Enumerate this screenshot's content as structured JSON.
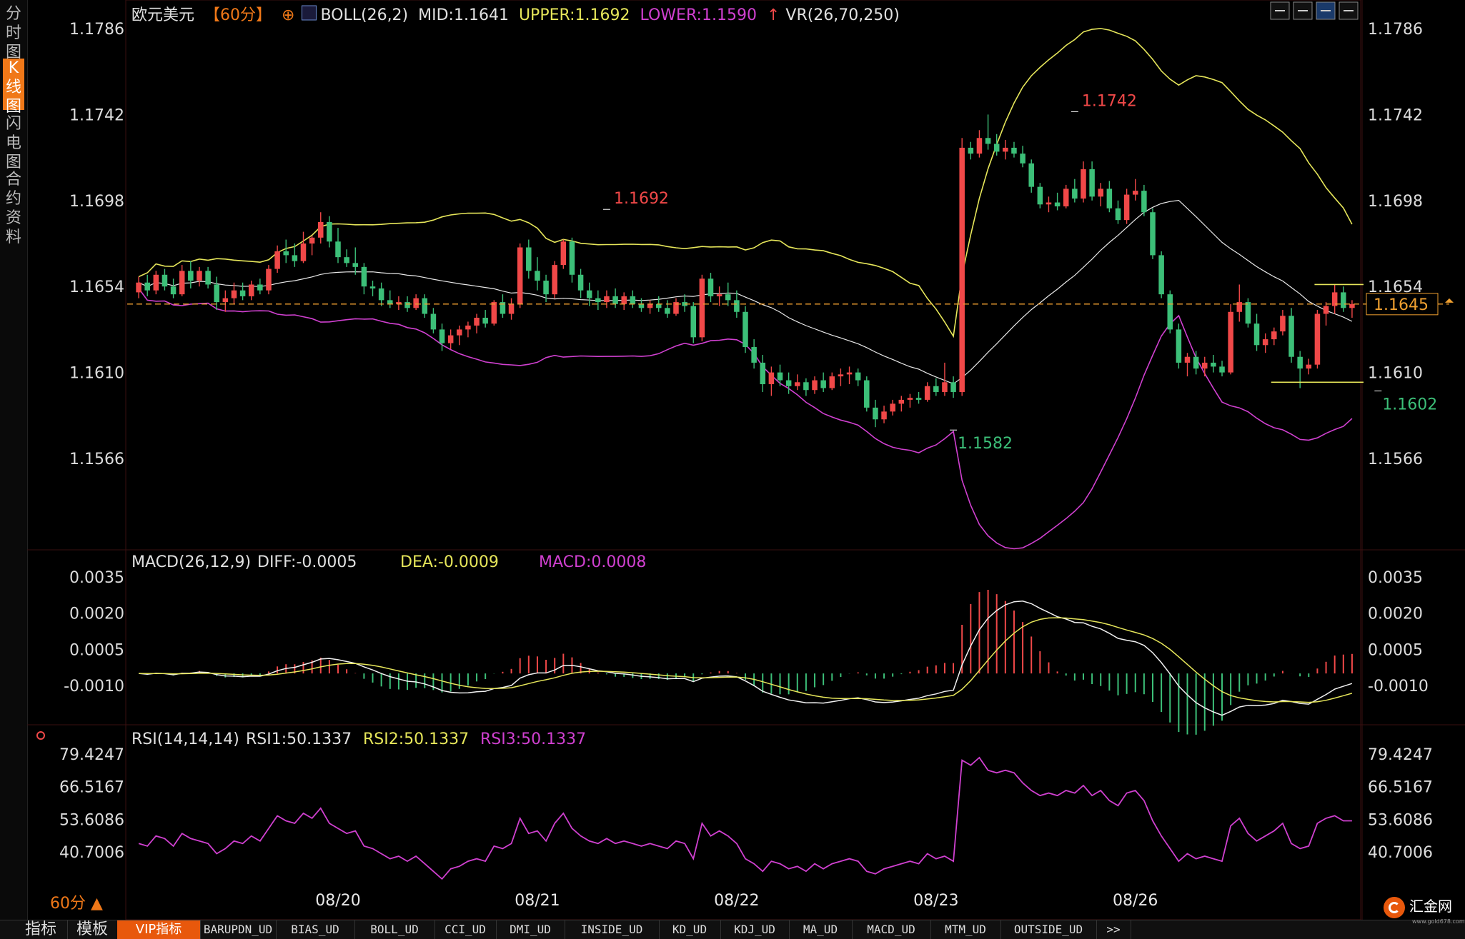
{
  "sidebar": {
    "tabs": [
      {
        "label": "分时图",
        "active": false
      },
      {
        "label": "K线图",
        "active": true
      },
      {
        "label": "闪电图",
        "active": false
      },
      {
        "label": "合约资料",
        "active": false
      }
    ]
  },
  "header": {
    "symbol": "欧元美元",
    "period": "【60分】",
    "boll": "BOLL(26,2)",
    "mid": "MID:1.1641",
    "upper": "UPPER:1.1692",
    "lower": "LOWER:1.1590",
    "vr": "VR(26,70,250)"
  },
  "toolbar_icons": [
    "crosshair-icon",
    "grid-icon",
    "line-chart-icon",
    "fullscreen-icon"
  ],
  "price_panel": {
    "y_ticks": [
      "1.1786",
      "1.1742",
      "1.1698",
      "1.1654",
      "1.1610",
      "1.1566"
    ],
    "y_tick_values": [
      1.1786,
      1.1742,
      1.1698,
      1.1654,
      1.161,
      1.1566
    ],
    "current_price": "1.1645",
    "current_value": 1.1645,
    "annotations": [
      {
        "text": "1.1692",
        "type": "high",
        "bar": 54,
        "price": 1.1692
      },
      {
        "text": "1.1742",
        "type": "high",
        "bar": 108,
        "price": 1.1742
      },
      {
        "text": "1.1582",
        "type": "low",
        "bar": 94,
        "price": 1.1582
      },
      {
        "text": "1.1602",
        "type": "low",
        "bar": 143,
        "price": 1.1602
      }
    ],
    "range_lines": [
      {
        "price": 1.1655,
        "from_bar": 136,
        "to_bar": 155
      },
      {
        "price": 1.1605,
        "from_bar": 131,
        "to_bar": 155
      }
    ]
  },
  "macd_panel": {
    "label": "MACD(26,12,9)",
    "diff": "DIFF:-0.0005",
    "dea": "DEA:-0.0009",
    "macd": "MACD:0.0008",
    "y_ticks": [
      "0.0035",
      "0.0020",
      "0.0005",
      "-0.0010"
    ],
    "y_tick_values": [
      0.0035,
      0.002,
      0.0005,
      -0.001
    ]
  },
  "rsi_panel": {
    "label": "RSI(14,14,14)",
    "rsi1": "RSI1:50.1337",
    "rsi2": "RSI2:50.1337",
    "rsi3": "RSI3:50.1337",
    "y_ticks": [
      "79.4247",
      "66.5167",
      "53.6086",
      "40.7006"
    ],
    "y_tick_values": [
      79.4247,
      66.5167,
      53.6086,
      40.7006
    ]
  },
  "x_axis": {
    "dates": [
      {
        "label": "08/20",
        "bar": 23
      },
      {
        "label": "08/21",
        "bar": 46
      },
      {
        "label": "08/22",
        "bar": 69
      },
      {
        "label": "08/23",
        "bar": 92
      },
      {
        "label": "08/26",
        "bar": 115
      }
    ]
  },
  "period_label": "60分",
  "bottom_tabs": [
    "指标",
    "模板",
    "VIP指标",
    "BARUPDN_UD",
    "BIAS_UD",
    "BOLL_UD",
    "CCI_UD",
    "DMI_UD",
    "INSIDE_UD",
    "KD_UD",
    "KDJ_UD",
    "MA_UD",
    "MACD_UD",
    "MTM_UD",
    "OUTSIDE_UD",
    ">>"
  ],
  "logo": {
    "text": "汇金网",
    "sub": "www.gold678.com"
  },
  "colors": {
    "up": "#f04848",
    "down": "#3cbf78",
    "mid": "#e8e8e8",
    "upper": "#e6e65a",
    "lower": "#d040d0",
    "accent": "#f07818",
    "axis": "#3a1010"
  },
  "chart_data": [
    {
      "type": "candlestick",
      "title": "欧元美元 60分",
      "ohlc": [
        [
          1.1651,
          1.1659,
          1.1648,
          1.1656
        ],
        [
          1.1656,
          1.166,
          1.1649,
          1.1652
        ],
        [
          1.1652,
          1.1662,
          1.165,
          1.166
        ],
        [
          1.166,
          1.1663,
          1.1652,
          1.1654
        ],
        [
          1.1654,
          1.1658,
          1.1648,
          1.165
        ],
        [
          1.165,
          1.1665,
          1.1649,
          1.1662
        ],
        [
          1.1662,
          1.1667,
          1.1653,
          1.1657
        ],
        [
          1.1657,
          1.1664,
          1.1654,
          1.1662
        ],
        [
          1.1662,
          1.1664,
          1.1653,
          1.1655
        ],
        [
          1.1655,
          1.1659,
          1.1642,
          1.1646
        ],
        [
          1.1646,
          1.1652,
          1.1641,
          1.1648
        ],
        [
          1.1648,
          1.1656,
          1.1645,
          1.1652
        ],
        [
          1.1652,
          1.1656,
          1.1647,
          1.1649
        ],
        [
          1.1649,
          1.1657,
          1.1647,
          1.1655
        ],
        [
          1.1655,
          1.1658,
          1.165,
          1.1652
        ],
        [
          1.1652,
          1.1665,
          1.165,
          1.1663
        ],
        [
          1.1663,
          1.1675,
          1.1661,
          1.1672
        ],
        [
          1.1672,
          1.1678,
          1.1666,
          1.167
        ],
        [
          1.167,
          1.1676,
          1.1664,
          1.1667
        ],
        [
          1.1667,
          1.1682,
          1.1666,
          1.1676
        ],
        [
          1.1676,
          1.168,
          1.167,
          1.1679
        ],
        [
          1.1679,
          1.1692,
          1.1676,
          1.1687
        ],
        [
          1.1687,
          1.169,
          1.1674,
          1.1677
        ],
        [
          1.1677,
          1.1684,
          1.1666,
          1.1669
        ],
        [
          1.1669,
          1.1673,
          1.1664,
          1.1666
        ],
        [
          1.1666,
          1.1674,
          1.166,
          1.1664
        ],
        [
          1.1664,
          1.1666,
          1.165,
          1.1654
        ],
        [
          1.1654,
          1.1657,
          1.1649,
          1.1653
        ],
        [
          1.1653,
          1.1656,
          1.1644,
          1.1647
        ],
        [
          1.1647,
          1.1652,
          1.1643,
          1.1645
        ],
        [
          1.1645,
          1.1649,
          1.1642,
          1.1646
        ],
        [
          1.1646,
          1.1649,
          1.1641,
          1.1643
        ],
        [
          1.1643,
          1.165,
          1.1642,
          1.1648
        ],
        [
          1.1648,
          1.165,
          1.1638,
          1.164
        ],
        [
          1.164,
          1.1643,
          1.163,
          1.1632
        ],
        [
          1.1632,
          1.1635,
          1.1621,
          1.1625
        ],
        [
          1.1625,
          1.1632,
          1.1622,
          1.1629
        ],
        [
          1.1629,
          1.1634,
          1.1624,
          1.1632
        ],
        [
          1.1632,
          1.1636,
          1.1628,
          1.1634
        ],
        [
          1.1634,
          1.164,
          1.163,
          1.1638
        ],
        [
          1.1638,
          1.1642,
          1.1633,
          1.1635
        ],
        [
          1.1635,
          1.1647,
          1.1634,
          1.1646
        ],
        [
          1.1646,
          1.165,
          1.1638,
          1.164
        ],
        [
          1.164,
          1.1648,
          1.1637,
          1.1645
        ],
        [
          1.1645,
          1.1676,
          1.1643,
          1.1674
        ],
        [
          1.1674,
          1.1678,
          1.1658,
          1.1662
        ],
        [
          1.1662,
          1.1669,
          1.1652,
          1.1657
        ],
        [
          1.1657,
          1.166,
          1.1646,
          1.165
        ],
        [
          1.165,
          1.1667,
          1.1648,
          1.1665
        ],
        [
          1.1665,
          1.1678,
          1.1663,
          1.1677
        ],
        [
          1.1677,
          1.1679,
          1.1656,
          1.166
        ],
        [
          1.166,
          1.1663,
          1.1648,
          1.1652
        ],
        [
          1.1652,
          1.1656,
          1.1644,
          1.1648
        ],
        [
          1.1648,
          1.1652,
          1.1642,
          1.1646
        ],
        [
          1.1646,
          1.1652,
          1.1643,
          1.1649
        ],
        [
          1.1649,
          1.1653,
          1.1643,
          1.1645
        ],
        [
          1.1645,
          1.1651,
          1.1642,
          1.1649
        ],
        [
          1.1649,
          1.1652,
          1.1643,
          1.1645
        ],
        [
          1.1645,
          1.1648,
          1.1641,
          1.1643
        ],
        [
          1.1643,
          1.1647,
          1.164,
          1.1645
        ],
        [
          1.1645,
          1.1649,
          1.1641,
          1.1643
        ],
        [
          1.1643,
          1.1647,
          1.1638,
          1.164
        ],
        [
          1.164,
          1.1648,
          1.1639,
          1.1646
        ],
        [
          1.1646,
          1.165,
          1.1641,
          1.1644
        ],
        [
          1.1644,
          1.1646,
          1.1625,
          1.1628
        ],
        [
          1.1628,
          1.166,
          1.1626,
          1.1658
        ],
        [
          1.1658,
          1.1661,
          1.1646,
          1.1649
        ],
        [
          1.1649,
          1.1654,
          1.1644,
          1.165
        ],
        [
          1.165,
          1.1656,
          1.1644,
          1.1647
        ],
        [
          1.1647,
          1.1652,
          1.1638,
          1.1641
        ],
        [
          1.1641,
          1.1644,
          1.162,
          1.1623
        ],
        [
          1.1623,
          1.1627,
          1.1612,
          1.1615
        ],
        [
          1.1615,
          1.1619,
          1.16,
          1.1604
        ],
        [
          1.1604,
          1.1613,
          1.1598,
          1.161
        ],
        [
          1.161,
          1.1614,
          1.1603,
          1.1606
        ],
        [
          1.1606,
          1.161,
          1.1599,
          1.1603
        ],
        [
          1.1603,
          1.1609,
          1.1601,
          1.1605
        ],
        [
          1.1605,
          1.1607,
          1.1598,
          1.1601
        ],
        [
          1.1601,
          1.1608,
          1.1599,
          1.1606
        ],
        [
          1.1606,
          1.161,
          1.16,
          1.1602
        ],
        [
          1.1602,
          1.161,
          1.1601,
          1.1608
        ],
        [
          1.1608,
          1.1612,
          1.1603,
          1.1609
        ],
        [
          1.1609,
          1.1613,
          1.1604,
          1.161
        ],
        [
          1.161,
          1.1612,
          1.1603,
          1.1606
        ],
        [
          1.1606,
          1.1608,
          1.159,
          1.1592
        ],
        [
          1.1592,
          1.1596,
          1.1582,
          1.1586
        ],
        [
          1.1586,
          1.1593,
          1.1584,
          1.159
        ],
        [
          1.159,
          1.1596,
          1.1588,
          1.1594
        ],
        [
          1.1594,
          1.1598,
          1.159,
          1.1596
        ],
        [
          1.1596,
          1.1599,
          1.1592,
          1.1597
        ],
        [
          1.1597,
          1.16,
          1.1594,
          1.1596
        ],
        [
          1.1596,
          1.1605,
          1.1595,
          1.1603
        ],
        [
          1.1603,
          1.1607,
          1.1598,
          1.16
        ],
        [
          1.16,
          1.1615,
          1.1598,
          1.1605
        ],
        [
          1.1605,
          1.1608,
          1.1597,
          1.16
        ],
        [
          1.16,
          1.173,
          1.1598,
          1.1725
        ],
        [
          1.1725,
          1.1728,
          1.1719,
          1.1722
        ],
        [
          1.1722,
          1.1734,
          1.172,
          1.173
        ],
        [
          1.173,
          1.1742,
          1.1724,
          1.1727
        ],
        [
          1.1727,
          1.1732,
          1.1721,
          1.1723
        ],
        [
          1.1723,
          1.1729,
          1.1719,
          1.1725
        ],
        [
          1.1725,
          1.1728,
          1.172,
          1.1722
        ],
        [
          1.1722,
          1.1726,
          1.1715,
          1.1717
        ],
        [
          1.1717,
          1.1719,
          1.1702,
          1.1705
        ],
        [
          1.1705,
          1.1707,
          1.1694,
          1.1696
        ],
        [
          1.1696,
          1.17,
          1.1692,
          1.1697
        ],
        [
          1.1697,
          1.1702,
          1.1693,
          1.1695
        ],
        [
          1.1695,
          1.1706,
          1.1694,
          1.1704
        ],
        [
          1.1704,
          1.1709,
          1.1697,
          1.1699
        ],
        [
          1.1699,
          1.1718,
          1.1697,
          1.1714
        ],
        [
          1.1714,
          1.1718,
          1.1698,
          1.17
        ],
        [
          1.17,
          1.1707,
          1.1695,
          1.1704
        ],
        [
          1.1704,
          1.1708,
          1.1692,
          1.1694
        ],
        [
          1.1694,
          1.1698,
          1.1686,
          1.1688
        ],
        [
          1.1688,
          1.1704,
          1.1686,
          1.1701
        ],
        [
          1.1701,
          1.1709,
          1.1698,
          1.1703
        ],
        [
          1.1703,
          1.1706,
          1.169,
          1.1692
        ],
        [
          1.1692,
          1.1694,
          1.1668,
          1.167
        ],
        [
          1.167,
          1.1672,
          1.1648,
          1.165
        ],
        [
          1.165,
          1.1652,
          1.163,
          1.1632
        ],
        [
          1.1632,
          1.1635,
          1.1612,
          1.1615
        ],
        [
          1.1615,
          1.162,
          1.1608,
          1.1618
        ],
        [
          1.1618,
          1.1621,
          1.1609,
          1.1612
        ],
        [
          1.1612,
          1.1618,
          1.1608,
          1.1615
        ],
        [
          1.1615,
          1.1619,
          1.161,
          1.1613
        ],
        [
          1.1613,
          1.1616,
          1.1608,
          1.161
        ],
        [
          1.161,
          1.1645,
          1.1609,
          1.1641
        ],
        [
          1.1641,
          1.1655,
          1.1636,
          1.1646
        ],
        [
          1.1646,
          1.1648,
          1.1633,
          1.1635
        ],
        [
          1.1635,
          1.164,
          1.1621,
          1.1624
        ],
        [
          1.1624,
          1.163,
          1.162,
          1.1627
        ],
        [
          1.1627,
          1.1633,
          1.1624,
          1.1631
        ],
        [
          1.1631,
          1.1642,
          1.1629,
          1.1639
        ],
        [
          1.1639,
          1.1643,
          1.1615,
          1.1618
        ],
        [
          1.1618,
          1.1621,
          1.1602,
          1.1612
        ],
        [
          1.1612,
          1.1617,
          1.1609,
          1.1614
        ],
        [
          1.1614,
          1.1642,
          1.1612,
          1.164
        ],
        [
          1.164,
          1.1646,
          1.1634,
          1.1644
        ],
        [
          1.1644,
          1.1655,
          1.164,
          1.1651
        ],
        [
          1.1651,
          1.1654,
          1.1641,
          1.1643
        ],
        [
          1.1643,
          1.1647,
          1.1638,
          1.1645
        ]
      ],
      "boll_mid": [
        1.1688,
        1.1686,
        1.1684,
        1.1681,
        1.1678,
        1.1675,
        1.1673,
        1.1671,
        1.1669,
        1.1668,
        1.1668,
        1.1668,
        1.1668,
        1.1667,
        1.1665,
        1.1663,
        1.1661,
        1.166,
        1.1658,
        1.1657,
        1.1656,
        1.1655,
        1.1654,
        1.1653,
        1.1652,
        1.1652,
        1.1651,
        1.1651,
        1.165,
        1.1649,
        1.1648,
        1.1647,
        1.1647,
        1.1646,
        1.1646,
        1.1646,
        1.1646,
        1.1646,
        1.1646,
        1.1646,
        1.1646,
        1.1646,
        1.1647,
        1.1647,
        1.1648,
        1.1648,
        1.1648,
        1.1648,
        1.1648,
        1.1648,
        1.1648,
        1.1649,
        1.1649,
        1.1648,
        1.1647,
        1.1646,
        1.1644,
        1.1642,
        1.1639,
        1.1636,
        1.1632,
        1.1629,
        1.1625,
        1.1621,
        1.1618,
        1.1614,
        1.1611,
        1.1609,
        1.1608,
        1.1609,
        1.1612,
        1.1618,
        1.1625,
        1.1632,
        1.1639,
        1.1645,
        1.1651,
        1.1657,
        1.1663,
        1.1668,
        1.1674,
        1.168,
        1.1686,
        1.1691,
        1.1695,
        1.1699,
        1.1701,
        1.1702,
        1.1697,
        1.1693,
        1.1689,
        1.1684,
        1.168,
        1.1676,
        1.1671,
        1.1668,
        1.1665,
        1.1662,
        1.1659,
        1.1657,
        1.1655,
        1.1653,
        1.1651,
        1.1649,
        1.1647,
        1.1646,
        1.1644,
        1.1643,
        1.1641
      ],
      "boll_start_bar": 44,
      "rsi": [
        44,
        43,
        47,
        46,
        43,
        48,
        46,
        45,
        44,
        40,
        42,
        45,
        44,
        47,
        45,
        50,
        55,
        53,
        52,
        56,
        54,
        58,
        52,
        50,
        48,
        49,
        43,
        42,
        40,
        38,
        39,
        37,
        39,
        36,
        33,
        30,
        34,
        35,
        37,
        38,
        37,
        43,
        42,
        44,
        54,
        48,
        49,
        45,
        52,
        56,
        50,
        47,
        45,
        44,
        46,
        44,
        45,
        44,
        43,
        44,
        43,
        42,
        45,
        44,
        38,
        52,
        47,
        49,
        47,
        44,
        38,
        36,
        33,
        37,
        36,
        34,
        35,
        33,
        36,
        34,
        36,
        37,
        38,
        37,
        33,
        32,
        34,
        35,
        36,
        37,
        36,
        40,
        38,
        39,
        37,
        77,
        75,
        78,
        73,
        72,
        73,
        72,
        68,
        65,
        63,
        64,
        63,
        65,
        64,
        67,
        63,
        65,
        61,
        59,
        64,
        65,
        61,
        53,
        47,
        42,
        37,
        40,
        38,
        39,
        38,
        37,
        51,
        54,
        48,
        45,
        47,
        49,
        52,
        44,
        42,
        43,
        52,
        54,
        55,
        53,
        53
      ]
    }
  ]
}
